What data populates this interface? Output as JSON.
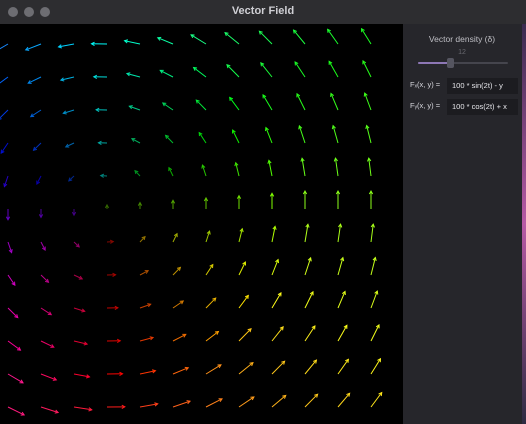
{
  "window": {
    "title": "Vector Field"
  },
  "panel": {
    "density_label": "Vector density (δ)",
    "density_value": "12",
    "density_fraction": 0.35,
    "fx_label": "Fₓ(x, y) =",
    "fx_expr": "100 * sin(2t) - y",
    "fy_label": "Fᵧ(x, y) =",
    "fy_expr": "100 * cos(2t) + x"
  },
  "field": {
    "cols": 12,
    "rows": 12,
    "t": 0
  }
}
